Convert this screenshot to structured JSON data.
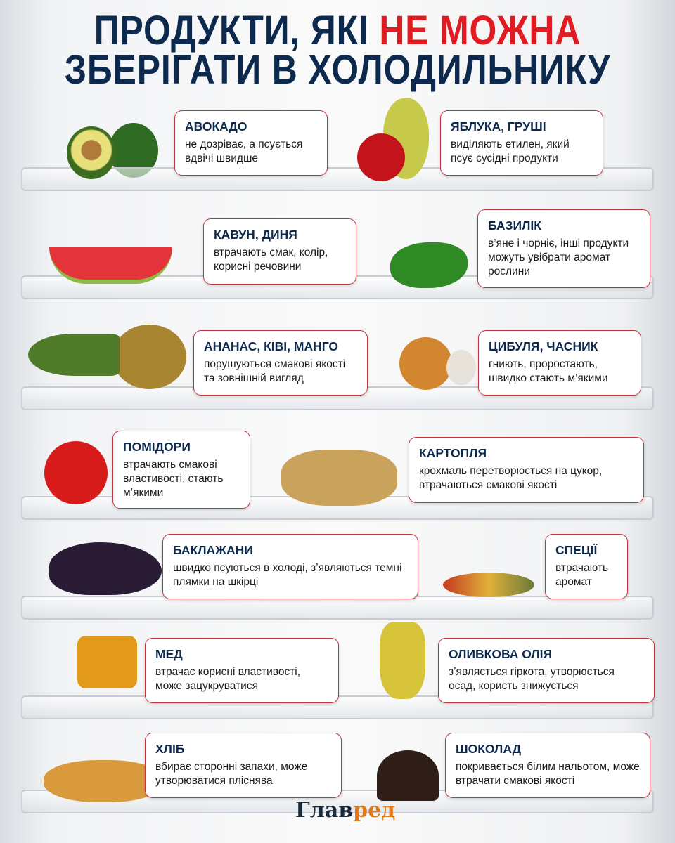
{
  "title": {
    "line1_part1": "ПРОДУКТИ, ЯКІ ",
    "line1_highlight": "НЕ МОЖНА",
    "line2": "ЗБЕРІГАТИ В ХОЛОДИЛЬНИКУ"
  },
  "colors": {
    "navy": "#0d2a4e",
    "red": "#e01b22",
    "card_border": "#c2333d",
    "logo_accent": "#e07a1f"
  },
  "items": [
    {
      "name": "АВОКАДО",
      "text": "не дозріває, а псується вдвічі швидше"
    },
    {
      "name": "ЯБЛУКА, ГРУШІ",
      "text": "виділяють етилен, який псує сусідні продукти"
    },
    {
      "name": "КАВУН, ДИНЯ",
      "text": "втрачають смак, колір, корисні речовини"
    },
    {
      "name": "БАЗИЛІК",
      "text": "в’яне і чорніє, інші продукти можуть увібрати аромат рослини"
    },
    {
      "name": "АНАНАС, КІВІ, МАНГО",
      "text": "порушуються смакові якості та зовнішній вигляд"
    },
    {
      "name": "ЦИБУЛЯ, ЧАСНИК",
      "text": "гниють, проростають, швидко стають м’якими"
    },
    {
      "name": "ПОМІДОРИ",
      "text": "втрачають смакові властивості, стають м’якими"
    },
    {
      "name": "КАРТОПЛЯ",
      "text": "крохмаль перетворюється на цукор, втрачаються смакові якості"
    },
    {
      "name": "БАКЛАЖАНИ",
      "text": "швидко псуються в холоді, з’являються темні плямки на шкірці"
    },
    {
      "name": "СПЕЦІЇ",
      "text": "втрачають аромат"
    },
    {
      "name": "МЕД",
      "text": "втрачає корисні властивості, може зацукруватися"
    },
    {
      "name": "ОЛИВКОВА ОЛІЯ",
      "text": "з’являється гіркота, утворюється осад, користь знижується"
    },
    {
      "name": "ХЛІБ",
      "text": "вбирає сторонні запахи, може утворюватися пліснява"
    },
    {
      "name": "ШОКОЛАД",
      "text": "покривається білим нальотом, може втрачати смакові якості"
    }
  ],
  "logo": {
    "part1": "Глав",
    "part2": "ред"
  }
}
